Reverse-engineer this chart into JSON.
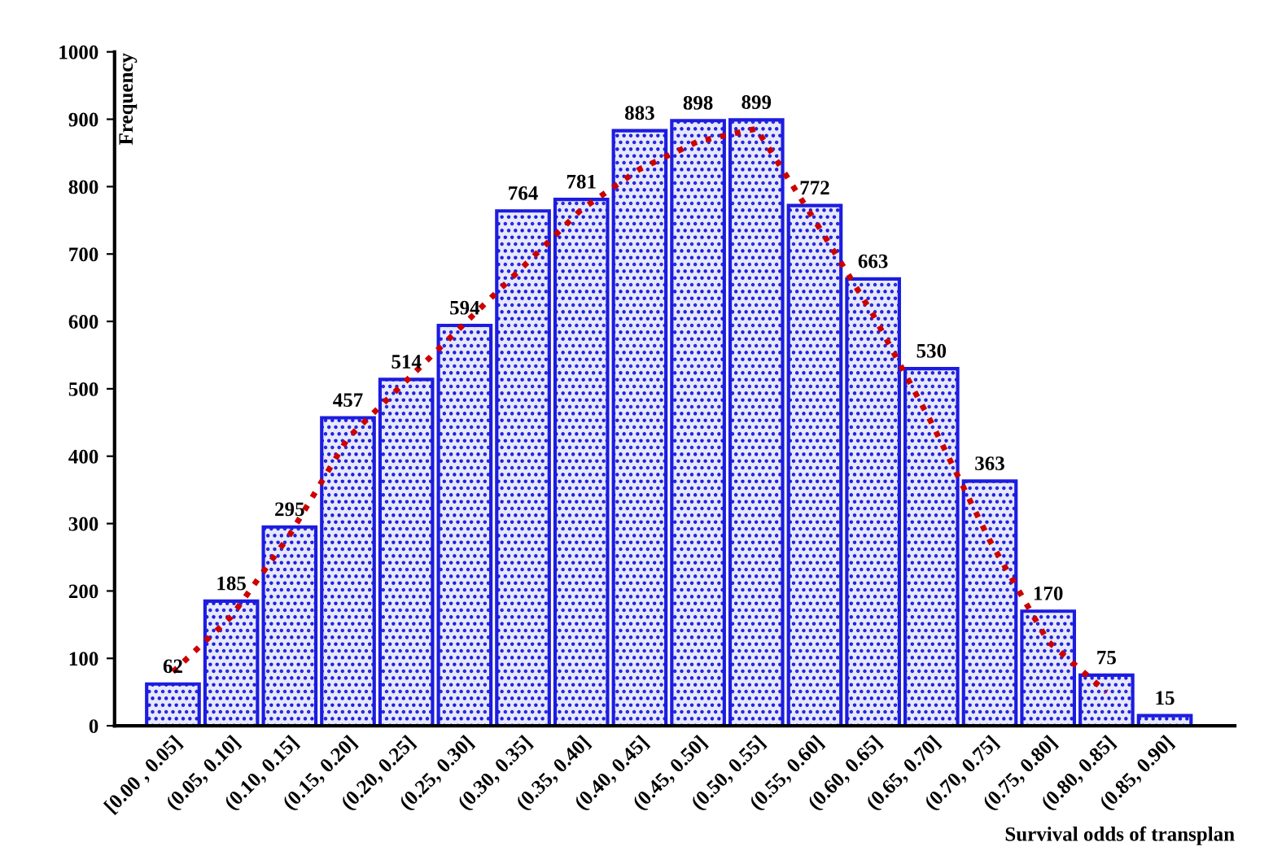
{
  "chart_data": {
    "type": "bar",
    "xlabel": "Survival odds of transplan",
    "ylabel": "Frequency",
    "categories": [
      "[0.00 , 0.05]",
      "(0.05, 0.10]",
      "(0.10, 0.15]",
      "(0.15, 0.20]",
      "(0.20, 0.25]",
      "(0.25, 0.30]",
      "(0.30, 0.35]",
      "(0.35, 0.40]",
      "(0.40, 0.45]",
      "(0.45, 0.50]",
      "(0.50, 0.55]",
      "(0.55, 0.60]",
      "(0.60, 0.65]",
      "(0.65, 0.70]",
      "(0.70, 0.75]",
      "(0.75, 0.80]",
      "(0.80, 0.85]",
      "(0.85, 0.90]"
    ],
    "series": [
      {
        "color": "#1c1ce0",
        "values": [
          62,
          185,
          295,
          457,
          514,
          594,
          764,
          781,
          883,
          898,
          899,
          772,
          663,
          530,
          363,
          170,
          75,
          15
        ],
        "value_labels": [
          "62",
          "185",
          "295",
          "457",
          "514",
          "594",
          "764",
          "781",
          "883",
          "898",
          "899",
          "772",
          "663",
          "530",
          "363",
          "170",
          "75",
          "15"
        ]
      },
      {
        "type": "line",
        "color": "#cc0000",
        "line_style": "dotted",
        "values": [
          80,
          162,
          283,
          427,
          512,
          597,
          681,
          766,
          826,
          867,
          886,
          750,
          610,
          450,
          275,
          125,
          50,
          null
        ]
      }
    ],
    "ylim": [
      0,
      1000
    ],
    "yticks": [
      0,
      100,
      200,
      300,
      400,
      500,
      600,
      700,
      800,
      900,
      1000
    ],
    "grid": false,
    "legend": false
  }
}
